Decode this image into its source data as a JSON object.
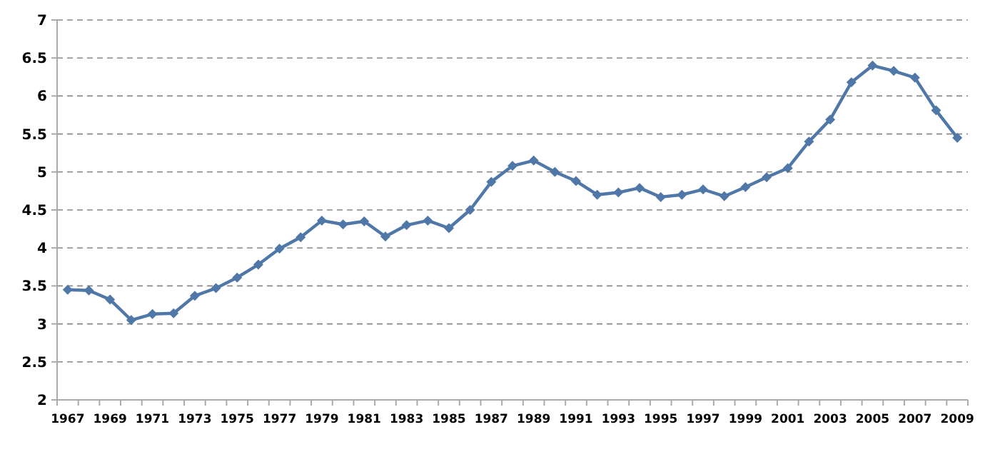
{
  "chart_data": {
    "type": "line",
    "categories": [
      "1967",
      null,
      "1969",
      null,
      "1971",
      null,
      "1973",
      null,
      "1975",
      null,
      "1977",
      null,
      "1979",
      null,
      "1981",
      null,
      "1983",
      null,
      "1985",
      null,
      "1987",
      null,
      "1989",
      null,
      "1991",
      null,
      "1993",
      null,
      "1995",
      null,
      "1997",
      null,
      "1999",
      null,
      "2001",
      null,
      "2003",
      null,
      "2005",
      null,
      "2007",
      null,
      "2009"
    ],
    "series": [
      {
        "color": "#4f77a8",
        "values": [
          3.45,
          3.44,
          3.32,
          3.05,
          3.13,
          3.14,
          3.37,
          3.47,
          3.61,
          3.78,
          3.99,
          4.14,
          4.36,
          4.31,
          4.35,
          4.15,
          4.3,
          4.36,
          4.26,
          4.5,
          4.87,
          5.08,
          5.15,
          5.0,
          4.88,
          4.7,
          4.73,
          4.79,
          4.67,
          4.7,
          4.77,
          4.68,
          4.8,
          4.93,
          5.05,
          5.4,
          5.69,
          6.18,
          6.4,
          6.33,
          6.24,
          5.81,
          5.45
        ]
      }
    ],
    "ylim": [
      2,
      7
    ],
    "yticks": [
      2,
      2.5,
      3,
      3.5,
      4,
      4.5,
      5,
      5.5,
      6,
      6.5,
      7
    ],
    "grid": "y",
    "marker": "diamond",
    "line_style": "solid"
  }
}
